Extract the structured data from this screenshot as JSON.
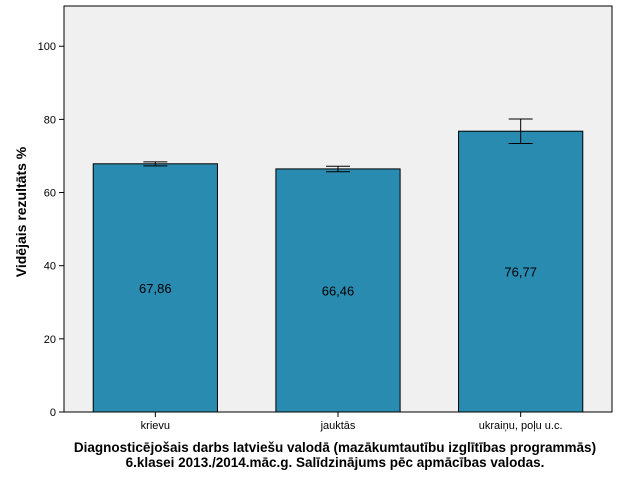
{
  "chart_data": {
    "type": "bar",
    "title": "",
    "xlabel": "Diagnosticējošais darbs latviešu valodā (mazākumtautību izglītības programmās) 6.klasei 2013./2014.māc.g. Salīdzinājums pēc apmācības valodas.",
    "ylabel": "Vidējais rezultāts %",
    "categories": [
      "krievu",
      "jauktās",
      "ukraiņu, poļu u.c."
    ],
    "values": [
      67.86,
      66.46,
      76.77
    ],
    "value_labels": [
      "67,86",
      "66,46",
      "76,77"
    ],
    "error_bars": [
      {
        "low": 67.3,
        "high": 68.4
      },
      {
        "low": 65.7,
        "high": 67.2
      },
      {
        "low": 73.4,
        "high": 80.1
      }
    ],
    "ylim": [
      0,
      111
    ],
    "yticks": [
      0,
      20,
      40,
      60,
      80,
      100
    ],
    "grid": false,
    "legend": "none",
    "bar_color": "#2a8bb0",
    "plot_background": "#f0f0f0"
  }
}
